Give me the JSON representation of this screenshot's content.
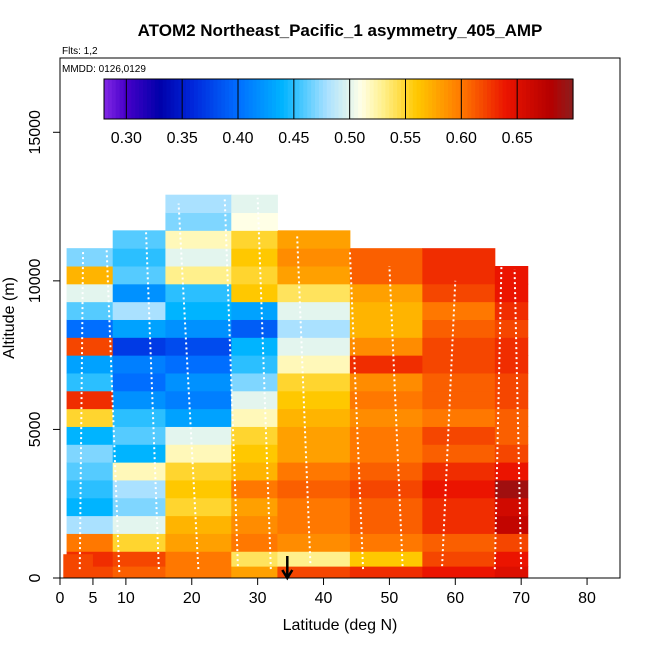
{
  "chart_data": {
    "type": "heatmap",
    "title": "ATOM2 Northeast_Pacific_1 asymmetry_405_AMP",
    "flights_label": "Flts: 1,2",
    "dates_label": "MMDD: 0126,0129",
    "xlabel": "Latitude (deg N)",
    "ylabel": "Altitude (m)",
    "xlim": [
      0,
      85
    ],
    "ylim": [
      0,
      17500
    ],
    "x_ticks": [
      0,
      5,
      10,
      20,
      30,
      40,
      50,
      60,
      70,
      80
    ],
    "y_ticks": [
      0,
      5000,
      10000,
      15000
    ],
    "colorbar": {
      "min": 0.28,
      "max": 0.7,
      "ticks": [
        0.3,
        0.35,
        0.4,
        0.45,
        0.5,
        0.55,
        0.6,
        0.65
      ],
      "tick_labels": [
        "0.30",
        "0.35",
        "0.40",
        "0.45",
        "0.50",
        "0.55",
        "0.60",
        "0.65"
      ]
    },
    "marker": {
      "x": 34.5,
      "label": "arrow"
    },
    "columns": [
      {
        "x0": 0.5,
        "x1": 5,
        "tops": [
          800
        ],
        "values": [
          0.62
        ]
      },
      {
        "x0": 1,
        "x1": 8,
        "ymin": 0,
        "ymax": 11500
      },
      {
        "x0": 8,
        "x1": 16,
        "ymin": 0,
        "ymax": 12000
      },
      {
        "x0": 16,
        "x1": 26,
        "ymin": 0,
        "ymax": 12900
      },
      {
        "x0": 26,
        "x1": 33,
        "ymin": 0,
        "ymax": 12900
      },
      {
        "x0": 33,
        "x1": 44,
        "ymin": 0,
        "ymax": 12000
      },
      {
        "x0": 44,
        "x1": 55,
        "ymin": 0,
        "ymax": 11500
      },
      {
        "x0": 55,
        "x1": 66,
        "ymin": 0,
        "ymax": 11200
      },
      {
        "x0": 66,
        "x1": 71,
        "ymin": 0,
        "ymax": 10800
      }
    ],
    "rows": [
      {
        "y0": 0,
        "y1": 400,
        "values": [
          0.62,
          0.61,
          0.6,
          0.58,
          0.62,
          0.63,
          0.64,
          0.65,
          0.64
        ]
      },
      {
        "y0": 400,
        "y1": 900,
        "values": [
          0.63,
          0.62,
          0.6,
          0.54,
          0.53,
          0.56,
          0.62,
          0.64,
          0.65
        ]
      },
      {
        "y0": 900,
        "y1": 1500,
        "values": [
          0.6,
          0.55,
          0.58,
          0.6,
          0.59,
          0.6,
          0.61,
          0.62,
          0.66
        ]
      },
      {
        "y0": 1500,
        "y1": 2100,
        "values": [
          0.48,
          0.5,
          0.57,
          0.59,
          0.6,
          0.61,
          0.63,
          0.67,
          0.68
        ]
      },
      {
        "y0": 2100,
        "y1": 2700,
        "values": [
          0.44,
          0.47,
          0.55,
          0.58,
          0.6,
          0.61,
          0.63,
          0.66,
          0.67
        ]
      },
      {
        "y0": 2700,
        "y1": 3300,
        "values": [
          0.45,
          0.48,
          0.56,
          0.6,
          0.61,
          0.62,
          0.64,
          0.69,
          0.66
        ]
      },
      {
        "y0": 3300,
        "y1": 3900,
        "values": [
          0.46,
          0.52,
          0.55,
          0.57,
          0.6,
          0.61,
          0.63,
          0.64,
          0.65
        ]
      },
      {
        "y0": 3900,
        "y1": 4500,
        "values": [
          0.47,
          0.44,
          0.52,
          0.56,
          0.58,
          0.6,
          0.61,
          0.62,
          0.63
        ]
      },
      {
        "y0": 4500,
        "y1": 5100,
        "values": [
          0.44,
          0.46,
          0.5,
          0.55,
          0.58,
          0.6,
          0.62,
          0.61,
          0.62
        ]
      },
      {
        "y0": 5100,
        "y1": 5700,
        "values": [
          0.55,
          0.45,
          0.43,
          0.52,
          0.57,
          0.59,
          0.6,
          0.61,
          0.63
        ]
      },
      {
        "y0": 5700,
        "y1": 6300,
        "values": [
          0.63,
          0.42,
          0.41,
          0.5,
          0.56,
          0.6,
          0.61,
          0.62,
          0.62
        ]
      },
      {
        "y0": 6300,
        "y1": 6900,
        "values": [
          0.45,
          0.4,
          0.42,
          0.47,
          0.55,
          0.59,
          0.61,
          0.62,
          0.63
        ]
      },
      {
        "y0": 6900,
        "y1": 7500,
        "values": [
          0.43,
          0.41,
          0.4,
          0.45,
          0.52,
          0.63,
          0.62,
          0.63,
          0.64
        ]
      },
      {
        "y0": 7500,
        "y1": 8100,
        "values": [
          0.62,
          0.37,
          0.38,
          0.44,
          0.5,
          0.59,
          0.62,
          0.63,
          0.65
        ]
      },
      {
        "y0": 8100,
        "y1": 8700,
        "values": [
          0.4,
          0.43,
          0.42,
          0.39,
          0.48,
          0.57,
          0.61,
          0.62,
          0.64
        ]
      },
      {
        "y0": 8700,
        "y1": 9300,
        "values": [
          0.46,
          0.48,
          0.44,
          0.43,
          0.5,
          0.57,
          0.6,
          0.63,
          0.64
        ]
      },
      {
        "y0": 9300,
        "y1": 9900,
        "values": [
          0.5,
          0.42,
          0.45,
          0.56,
          0.54,
          0.58,
          0.62,
          0.64,
          0.65
        ]
      },
      {
        "y0": 9900,
        "y1": 10500,
        "values": [
          0.57,
          0.46,
          0.53,
          0.55,
          0.58,
          0.61,
          0.63,
          0.64,
          0.63
        ]
      },
      {
        "y0": 10500,
        "y1": 11100,
        "values": [
          0.47,
          0.45,
          0.5,
          0.56,
          0.59,
          0.61,
          0.63,
          0.64,
          0.65
        ]
      },
      {
        "y0": 11100,
        "y1": 11700,
        "values": [
          0.6,
          0.46,
          0.52,
          0.55,
          0.58,
          0.6,
          0.62,
          0.64,
          0.64
        ]
      },
      {
        "y0": 11700,
        "y1": 12300,
        "values": [
          0.55,
          0.58,
          0.47,
          0.51,
          0.57,
          0.6,
          0.62,
          0.63,
          0.63
        ]
      },
      {
        "y0": 12300,
        "y1": 12900,
        "values": [
          0.55,
          0.6,
          0.48,
          0.5,
          0.58,
          0.6,
          0.61,
          0.62,
          0.62
        ]
      }
    ]
  }
}
